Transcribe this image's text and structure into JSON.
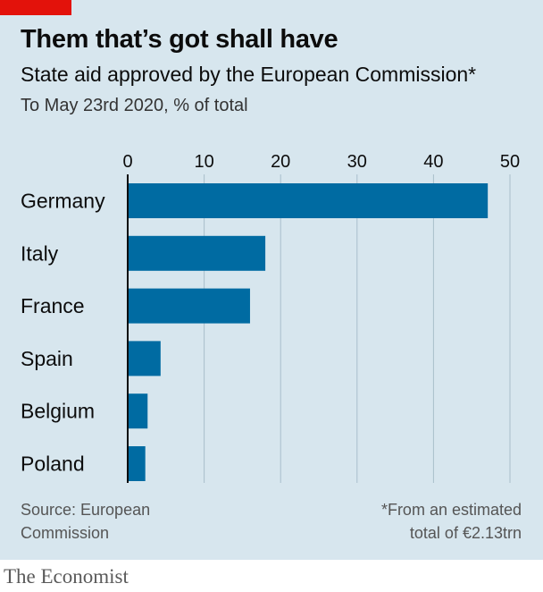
{
  "header": {
    "title": "Them that’s got shall have",
    "subtitle": "State aid approved by the European Commission*",
    "unit": "To May 23rd 2020, % of total"
  },
  "footer": {
    "source_line1": "Source: European",
    "source_line2": "Commission",
    "note_line1": "*From an estimated",
    "note_line2": "total of €2.13trn",
    "brand": "The Economist"
  },
  "colors": {
    "bar": "#006ba2",
    "background": "#d7e6ee",
    "accent": "#e3120b"
  },
  "chart_data": {
    "type": "bar",
    "orientation": "horizontal",
    "categories": [
      "Germany",
      "Italy",
      "France",
      "Spain",
      "Belgium",
      "Poland"
    ],
    "values": [
      47.1,
      18.0,
      16.0,
      4.3,
      2.6,
      2.3
    ],
    "xlim": [
      0,
      50
    ],
    "xticks": [
      "0",
      "10",
      "20",
      "30",
      "40",
      "50"
    ],
    "title": "Them that’s got shall have",
    "subtitle": "State aid approved by the European Commission*",
    "grid": true
  }
}
